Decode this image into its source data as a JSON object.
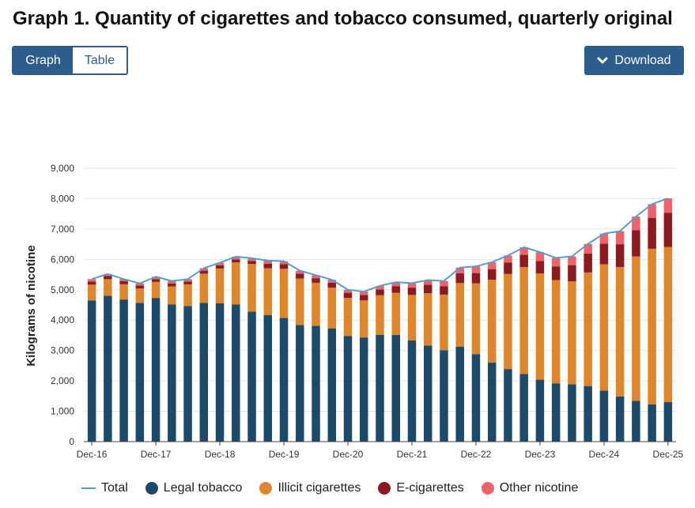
{
  "title": "Graph 1. Quantity of cigarettes and tobacco consumed, quarterly original",
  "toggle": {
    "graph_label": "Graph",
    "table_label": "Table"
  },
  "download_label": "Download",
  "colors": {
    "legal": "#1b4a6b",
    "illicit": "#e0862a",
    "ecig": "#8c1a1f",
    "other": "#f0626a",
    "total": "#4aa3d0",
    "grid": "#e6e6e6",
    "axis": "#444444"
  },
  "chart_data": {
    "type": "bar",
    "stacked": true,
    "ylabel": "Kilograms of nicotine",
    "ylim": [
      0,
      9000
    ],
    "yticks": [
      0,
      1000,
      2000,
      3000,
      4000,
      5000,
      6000,
      7000,
      8000,
      9000
    ],
    "ytick_labels": [
      "0",
      "1,000",
      "2,000",
      "3,000",
      "4,000",
      "5,000",
      "6,000",
      "7,000",
      "8,000",
      "9,000"
    ],
    "categories": [
      "Dec-16",
      "Mar-17",
      "Jun-17",
      "Sep-17",
      "Dec-17",
      "Mar-18",
      "Jun-18",
      "Sep-18",
      "Dec-18",
      "Mar-19",
      "Jun-19",
      "Sep-19",
      "Dec-19",
      "Mar-20",
      "Jun-20",
      "Sep-20",
      "Dec-20",
      "Mar-21",
      "Jun-21",
      "Sep-21",
      "Dec-21",
      "Mar-22",
      "Jun-22",
      "Sep-22",
      "Dec-22",
      "Mar-23",
      "Jun-23",
      "Sep-23",
      "Dec-23",
      "Mar-24",
      "Jun-24",
      "Sep-24",
      "Dec-24",
      "Mar-25",
      "Jun-25",
      "Sep-25",
      "Dec-25"
    ],
    "xtick_labels": [
      "Dec-16",
      "Dec-17",
      "Dec-18",
      "Dec-19",
      "Dec-20",
      "Dec-21",
      "Dec-22",
      "Dec-23",
      "Dec-24",
      "Dec-25"
    ],
    "series": [
      {
        "name": "Legal tobacco",
        "values": [
          4650,
          4800,
          4680,
          4570,
          4730,
          4520,
          4460,
          4570,
          4560,
          4520,
          4280,
          4170,
          4070,
          3840,
          3810,
          3730,
          3480,
          3430,
          3520,
          3510,
          3330,
          3160,
          3010,
          3130,
          2880,
          2600,
          2390,
          2230,
          2040,
          1920,
          1890,
          1830,
          1680,
          1490,
          1340,
          1230,
          1300
        ]
      },
      {
        "name": "Illicit cigarettes",
        "values": [
          520,
          550,
          500,
          470,
          530,
          590,
          720,
          960,
          1140,
          1380,
          1570,
          1540,
          1620,
          1530,
          1420,
          1340,
          1250,
          1220,
          1300,
          1390,
          1500,
          1730,
          1830,
          2090,
          2330,
          2730,
          3130,
          3520,
          3500,
          3400,
          3390,
          3740,
          4160,
          4260,
          4760,
          5120,
          5110
        ]
      },
      {
        "name": "E-cigarettes",
        "values": [
          100,
          100,
          100,
          100,
          90,
          100,
          90,
          100,
          100,
          100,
          100,
          150,
          150,
          160,
          150,
          160,
          170,
          180,
          190,
          220,
          240,
          280,
          280,
          320,
          340,
          350,
          380,
          400,
          410,
          450,
          530,
          620,
          680,
          750,
          860,
          1020,
          1120
        ]
      },
      {
        "name": "Other nicotine",
        "values": [
          80,
          70,
          70,
          70,
          80,
          80,
          80,
          80,
          90,
          90,
          90,
          100,
          100,
          100,
          100,
          100,
          100,
          110,
          120,
          130,
          150,
          150,
          170,
          190,
          220,
          230,
          230,
          250,
          290,
          280,
          290,
          320,
          330,
          430,
          450,
          450,
          480
        ]
      }
    ],
    "total": {
      "name": "Total",
      "values": [
        5350,
        5520,
        5350,
        5210,
        5430,
        5290,
        5350,
        5710,
        5890,
        6090,
        6040,
        5960,
        5940,
        5630,
        5480,
        5330,
        5000,
        4940,
        5130,
        5250,
        5220,
        5320,
        5290,
        5730,
        5770,
        5910,
        6130,
        6400,
        6240,
        6050,
        6100,
        6510,
        6850,
        6930,
        7410,
        7820,
        8010
      ]
    },
    "legend_position": "bottom-left",
    "grid": true
  },
  "legend": {
    "total": "Total",
    "legal": "Legal tobacco",
    "illicit": "Illicit cigarettes",
    "ecig": "E-cigarettes",
    "other": "Other nicotine"
  }
}
